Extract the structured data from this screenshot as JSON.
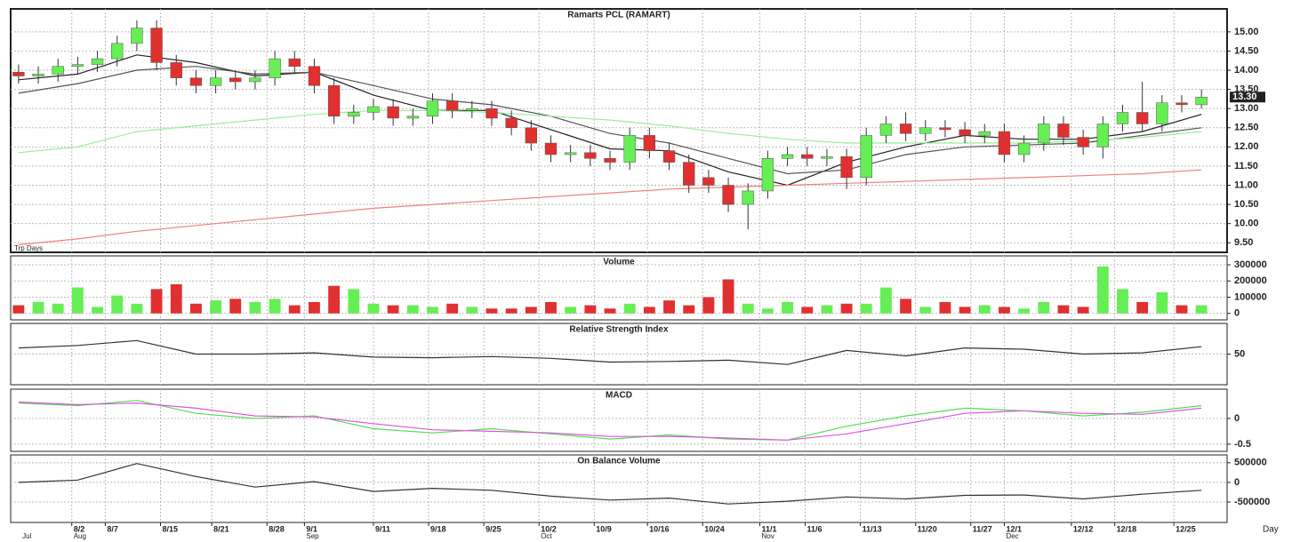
{
  "chart_data": [
    {
      "type": "candlestick",
      "title": "Ramarts PCL (RAMART)",
      "corner_label": "Trp Days",
      "open": [
        13.95,
        13.85,
        13.9,
        14.1,
        14.15,
        14.3,
        14.7,
        15.1,
        14.2,
        13.8,
        13.6,
        13.8,
        13.7,
        13.8,
        14.3,
        14.1,
        13.6,
        12.8,
        12.9,
        13.05,
        12.75,
        12.8,
        13.2,
        12.95,
        13.0,
        12.75,
        12.5,
        12.1,
        11.8,
        11.85,
        11.7,
        11.6,
        12.3,
        11.9,
        11.6,
        11.2,
        11.0,
        10.5,
        10.85,
        11.7,
        11.8,
        11.7,
        11.75,
        11.2,
        12.3,
        12.6,
        12.35,
        12.5,
        12.45,
        12.3,
        12.4,
        11.8,
        12.1,
        12.6,
        12.25,
        12.0,
        12.6,
        12.9,
        12.6,
        13.15,
        13.1
      ],
      "high": [
        14.15,
        14.1,
        14.3,
        14.35,
        14.5,
        14.9,
        15.3,
        15.3,
        14.4,
        14.0,
        14.0,
        14.0,
        14.0,
        14.5,
        14.5,
        14.3,
        13.8,
        13.1,
        13.25,
        13.25,
        13.0,
        13.4,
        13.4,
        13.2,
        13.2,
        12.95,
        12.7,
        12.3,
        12.05,
        12.05,
        11.9,
        12.5,
        12.5,
        12.1,
        11.8,
        11.4,
        11.2,
        11.05,
        11.9,
        12.0,
        12.0,
        11.95,
        11.95,
        12.5,
        12.8,
        12.9,
        12.7,
        12.7,
        12.65,
        12.6,
        12.6,
        12.3,
        12.8,
        12.8,
        12.45,
        12.8,
        13.1,
        13.7,
        13.35,
        13.35,
        13.5
      ],
      "low": [
        13.65,
        13.65,
        13.7,
        13.9,
        13.95,
        14.1,
        14.5,
        14.0,
        13.6,
        13.4,
        13.4,
        13.5,
        13.5,
        13.6,
        13.9,
        13.4,
        12.6,
        12.6,
        12.7,
        12.55,
        12.55,
        12.6,
        12.75,
        12.75,
        12.55,
        12.3,
        11.9,
        11.6,
        11.6,
        11.5,
        11.4,
        11.4,
        11.7,
        11.4,
        10.8,
        10.8,
        10.3,
        9.85,
        10.65,
        11.5,
        11.5,
        11.5,
        10.9,
        11.0,
        12.1,
        12.15,
        12.15,
        12.25,
        12.1,
        12.1,
        11.6,
        11.6,
        11.9,
        12.05,
        11.8,
        11.7,
        12.4,
        12.4,
        12.4,
        12.9,
        13.0
      ],
      "close": [
        13.85,
        13.9,
        14.1,
        14.15,
        14.3,
        14.7,
        15.1,
        14.2,
        13.8,
        13.6,
        13.8,
        13.7,
        13.8,
        14.3,
        14.1,
        13.6,
        12.8,
        12.9,
        13.05,
        12.75,
        12.8,
        13.2,
        12.95,
        13.0,
        12.75,
        12.5,
        12.1,
        11.8,
        11.85,
        11.7,
        11.6,
        12.3,
        11.9,
        11.6,
        11.0,
        11.0,
        10.5,
        10.85,
        11.7,
        11.8,
        11.7,
        11.75,
        11.2,
        12.3,
        12.6,
        12.35,
        12.5,
        12.45,
        12.3,
        12.4,
        11.8,
        12.1,
        12.6,
        12.25,
        12.0,
        12.6,
        12.9,
        12.6,
        13.15,
        13.1,
        13.3
      ],
      "up_color": "#66ee55",
      "down_color": "#e03030",
      "lines": [
        {
          "color": "#222222",
          "x": [
            0,
            3,
            6,
            9,
            12,
            15,
            18,
            21,
            24,
            27,
            30,
            33,
            36,
            39,
            42,
            45,
            48,
            51,
            54,
            57,
            60
          ],
          "values": [
            13.75,
            13.9,
            14.4,
            14.2,
            13.85,
            13.95,
            13.35,
            12.95,
            12.95,
            12.45,
            11.95,
            11.9,
            11.35,
            11.0,
            11.6,
            12.0,
            12.3,
            12.2,
            12.2,
            12.4,
            12.85
          ]
        },
        {
          "color": "#555555",
          "x": [
            0,
            3,
            6,
            9,
            12,
            15,
            18,
            21,
            24,
            27,
            30,
            33,
            36,
            39,
            42,
            45,
            48,
            51,
            54,
            57,
            60
          ],
          "values": [
            13.4,
            13.65,
            14.0,
            14.1,
            13.9,
            13.95,
            13.6,
            13.25,
            13.1,
            12.8,
            12.35,
            12.1,
            11.7,
            11.3,
            11.4,
            11.8,
            12.0,
            12.05,
            12.1,
            12.3,
            12.5
          ]
        },
        {
          "color": "#99ee99",
          "x": [
            0,
            3,
            6,
            9,
            12,
            15,
            18,
            21,
            24,
            27,
            30,
            33,
            36,
            39,
            42,
            45,
            48,
            51,
            54,
            57,
            60
          ],
          "values": [
            11.85,
            12.0,
            12.4,
            12.55,
            12.7,
            12.85,
            12.95,
            12.95,
            12.9,
            12.8,
            12.7,
            12.55,
            12.35,
            12.2,
            12.1,
            12.1,
            12.1,
            12.1,
            12.15,
            12.25,
            12.4
          ]
        },
        {
          "color": "#f08080",
          "x": [
            0,
            3,
            6,
            9,
            12,
            15,
            18,
            21,
            24,
            27,
            30,
            33,
            36,
            39,
            42,
            45,
            48,
            51,
            54,
            57,
            60
          ],
          "values": [
            9.45,
            9.6,
            9.8,
            9.95,
            10.1,
            10.25,
            10.4,
            10.5,
            10.6,
            10.7,
            10.8,
            10.9,
            10.95,
            11.0,
            11.05,
            11.1,
            11.15,
            11.2,
            11.25,
            11.3,
            11.4
          ]
        }
      ],
      "last_price": {
        "value": 13.3,
        "label": "13.30"
      },
      "ylim": [
        9.25,
        15.6
      ],
      "yticks": [
        {
          "value": 9.5,
          "label": "9.50"
        },
        {
          "value": 10,
          "label": "10.00"
        },
        {
          "value": 10.5,
          "label": "10.50"
        },
        {
          "value": 11,
          "label": "11.00"
        },
        {
          "value": 11.5,
          "label": "11.50"
        },
        {
          "value": 12,
          "label": "12.00"
        },
        {
          "value": 12.5,
          "label": "12.50"
        },
        {
          "value": 13,
          "label": "13.00"
        },
        {
          "value": 13.5,
          "label": "13.50"
        },
        {
          "value": 14,
          "label": "14.00"
        },
        {
          "value": 14.5,
          "label": "14.50"
        },
        {
          "value": 15,
          "label": "15.00"
        }
      ],
      "grid": true
    },
    {
      "type": "bar",
      "title": "Volume",
      "values": [
        50000,
        70000,
        60000,
        160000,
        40000,
        110000,
        60000,
        150000,
        180000,
        60000,
        80000,
        90000,
        70000,
        90000,
        50000,
        70000,
        170000,
        150000,
        60000,
        50000,
        50000,
        40000,
        60000,
        40000,
        30000,
        30000,
        40000,
        70000,
        40000,
        50000,
        30000,
        60000,
        40000,
        80000,
        50000,
        100000,
        210000,
        60000,
        30000,
        70000,
        40000,
        50000,
        60000,
        60000,
        160000,
        90000,
        40000,
        70000,
        40000,
        50000,
        40000,
        30000,
        70000,
        50000,
        40000,
        290000,
        150000,
        70000,
        130000,
        50000,
        50000
      ],
      "ylim": [
        -40000,
        355000
      ],
      "yticks": [
        0,
        100000,
        200000,
        300000
      ],
      "grid": true
    },
    {
      "type": "line",
      "title": "Relative Strength Index",
      "lines": [
        {
          "color": "#333333",
          "x": [
            0,
            3,
            6,
            9,
            12,
            15,
            18,
            21,
            24,
            27,
            30,
            33,
            36,
            39,
            42,
            45,
            48,
            51,
            54,
            57,
            60
          ],
          "values": [
            60,
            64,
            72,
            50,
            50,
            52,
            45,
            44,
            46,
            43,
            37,
            38,
            40,
            33,
            56,
            47,
            60,
            58,
            50,
            52,
            62
          ]
        }
      ],
      "ylim": [
        0,
        100
      ],
      "yticks": [
        50
      ],
      "grid": true
    },
    {
      "type": "line",
      "title": "MACD",
      "lines": [
        {
          "color": "#55dd55",
          "x": [
            0,
            3,
            6,
            9,
            12,
            15,
            18,
            21,
            24,
            27,
            30,
            33,
            36,
            39,
            42,
            45,
            48,
            51,
            54,
            57,
            60
          ],
          "values": [
            0.3,
            0.25,
            0.35,
            0.1,
            0.0,
            0.05,
            -0.2,
            -0.28,
            -0.2,
            -0.3,
            -0.4,
            -0.32,
            -0.4,
            -0.42,
            -0.15,
            0.05,
            0.2,
            0.15,
            0.05,
            0.12,
            0.25
          ]
        },
        {
          "color": "#dd55dd",
          "x": [
            0,
            3,
            6,
            9,
            12,
            15,
            18,
            21,
            24,
            27,
            30,
            33,
            36,
            39,
            42,
            45,
            48,
            51,
            54,
            57,
            60
          ],
          "values": [
            0.32,
            0.27,
            0.3,
            0.2,
            0.05,
            0.03,
            -0.1,
            -0.22,
            -0.25,
            -0.28,
            -0.35,
            -0.35,
            -0.38,
            -0.42,
            -0.3,
            -0.1,
            0.1,
            0.15,
            0.1,
            0.08,
            0.2
          ]
        }
      ],
      "ylim": [
        -0.64,
        0.57
      ],
      "yticks": [
        -0.5,
        0
      ],
      "grid": true
    },
    {
      "type": "line",
      "title": "On Balance Volume",
      "lines": [
        {
          "color": "#333333",
          "x": [
            0,
            3,
            6,
            9,
            12,
            15,
            18,
            21,
            24,
            27,
            30,
            33,
            36,
            39,
            42,
            45,
            48,
            51,
            54,
            57,
            60
          ],
          "values": [
            0,
            60000,
            480000,
            150000,
            -120000,
            20000,
            -230000,
            -150000,
            -200000,
            -350000,
            -450000,
            -400000,
            -550000,
            -480000,
            -370000,
            -420000,
            -330000,
            -320000,
            -420000,
            -300000,
            -200000
          ]
        }
      ],
      "ylim": [
        -1020000,
        700000
      ],
      "yticks": [
        -500000,
        0,
        500000
      ],
      "grid": true,
      "xlim": [
        -0.4,
        61.3
      ],
      "xticks": [
        {
          "value": 2.7,
          "label": "8/2"
        },
        {
          "value": 4.4,
          "label": "8/7"
        },
        {
          "value": 7.2,
          "label": "8/15"
        },
        {
          "value": 9.8,
          "label": "8/21"
        },
        {
          "value": 12.6,
          "label": "8/28"
        },
        {
          "value": 14.5,
          "label": "9/1"
        },
        {
          "value": 18.0,
          "label": "9/11"
        },
        {
          "value": 20.8,
          "label": "9/18"
        },
        {
          "value": 23.6,
          "label": "9/25"
        },
        {
          "value": 26.4,
          "label": "10/2"
        },
        {
          "value": 29.2,
          "label": "10/9"
        },
        {
          "value": 31.9,
          "label": "10/16"
        },
        {
          "value": 34.7,
          "label": "10/24"
        },
        {
          "value": 37.6,
          "label": "11/1"
        },
        {
          "value": 39.9,
          "label": "11/6"
        },
        {
          "value": 42.7,
          "label": "11/13"
        },
        {
          "value": 45.5,
          "label": "11/20"
        },
        {
          "value": 48.3,
          "label": "11/27"
        },
        {
          "value": 50.0,
          "label": "12/1"
        },
        {
          "value": 53.4,
          "label": "12/12"
        },
        {
          "value": 55.6,
          "label": "12/18"
        },
        {
          "value": 58.6,
          "label": "12/25"
        }
      ],
      "month_labels": [
        {
          "value": 0.1,
          "label": "Jul"
        },
        {
          "value": 2.7,
          "label": "Aug"
        },
        {
          "value": 14.5,
          "label": "Sep"
        },
        {
          "value": 26.4,
          "label": "Oct"
        },
        {
          "value": 37.6,
          "label": "Nov"
        },
        {
          "value": 50.0,
          "label": "Dec"
        }
      ],
      "x_label": "Day"
    }
  ]
}
